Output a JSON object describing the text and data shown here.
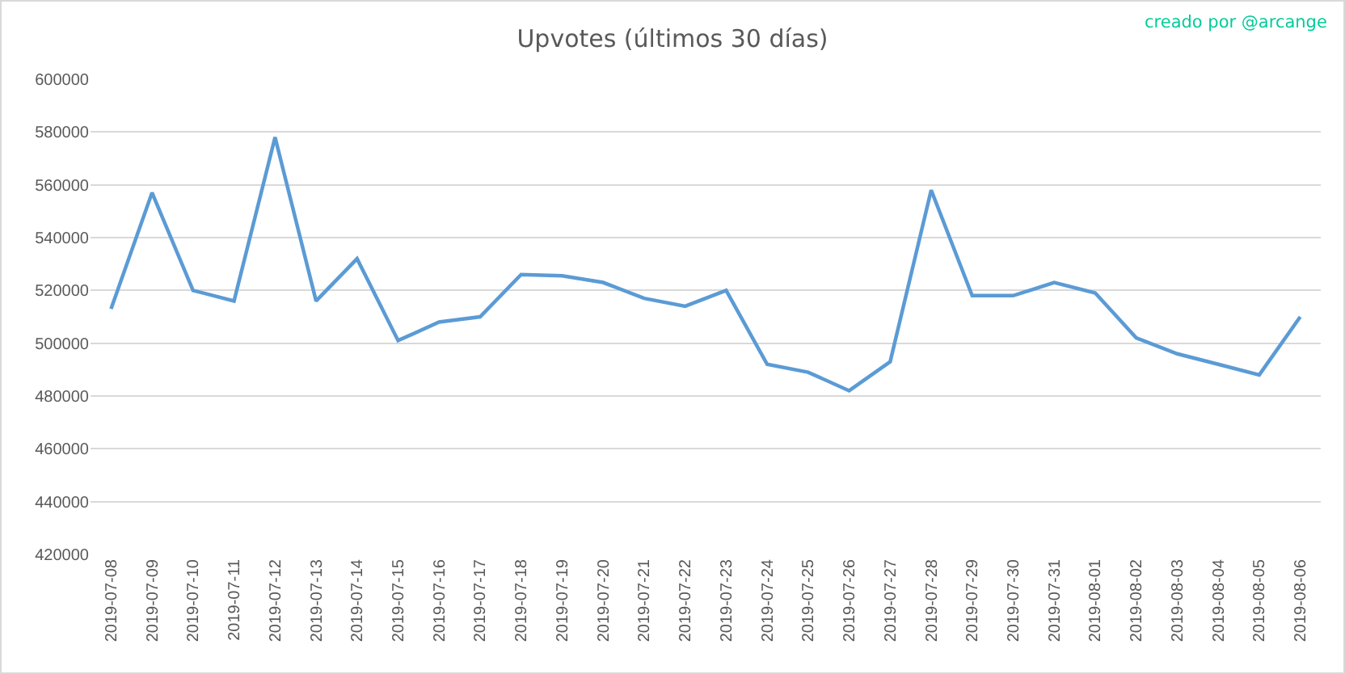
{
  "chart_data": {
    "type": "line",
    "title": "Upvotes (últimos 30 días)",
    "annotations": [
      "creado por @arcange"
    ],
    "categories": [
      "2019-07-08",
      "2019-07-09",
      "2019-07-10",
      "2019-07-11",
      "2019-07-12",
      "2019-07-13",
      "2019-07-14",
      "2019-07-15",
      "2019-07-16",
      "2019-07-17",
      "2019-07-18",
      "2019-07-19",
      "2019-07-20",
      "2019-07-21",
      "2019-07-22",
      "2019-07-23",
      "2019-07-24",
      "2019-07-25",
      "2019-07-26",
      "2019-07-27",
      "2019-07-28",
      "2019-07-29",
      "2019-07-30",
      "2019-07-31",
      "2019-08-01",
      "2019-08-02",
      "2019-08-03",
      "2019-08-04",
      "2019-08-05",
      "2019-08-06"
    ],
    "values": [
      513000,
      557000,
      520000,
      516000,
      578000,
      516000,
      532000,
      501000,
      508000,
      510000,
      526000,
      525500,
      523000,
      517000,
      514000,
      520000,
      492000,
      489000,
      482000,
      493000,
      558000,
      518000,
      518000,
      523000,
      519000,
      502000,
      496000,
      492000,
      488000,
      510000
    ],
    "color": "#5b9bd5",
    "ylim": [
      420000,
      600000
    ],
    "yticks": [
      420000,
      440000,
      460000,
      480000,
      500000,
      520000,
      540000,
      560000,
      580000,
      600000
    ],
    "grid": "y"
  }
}
